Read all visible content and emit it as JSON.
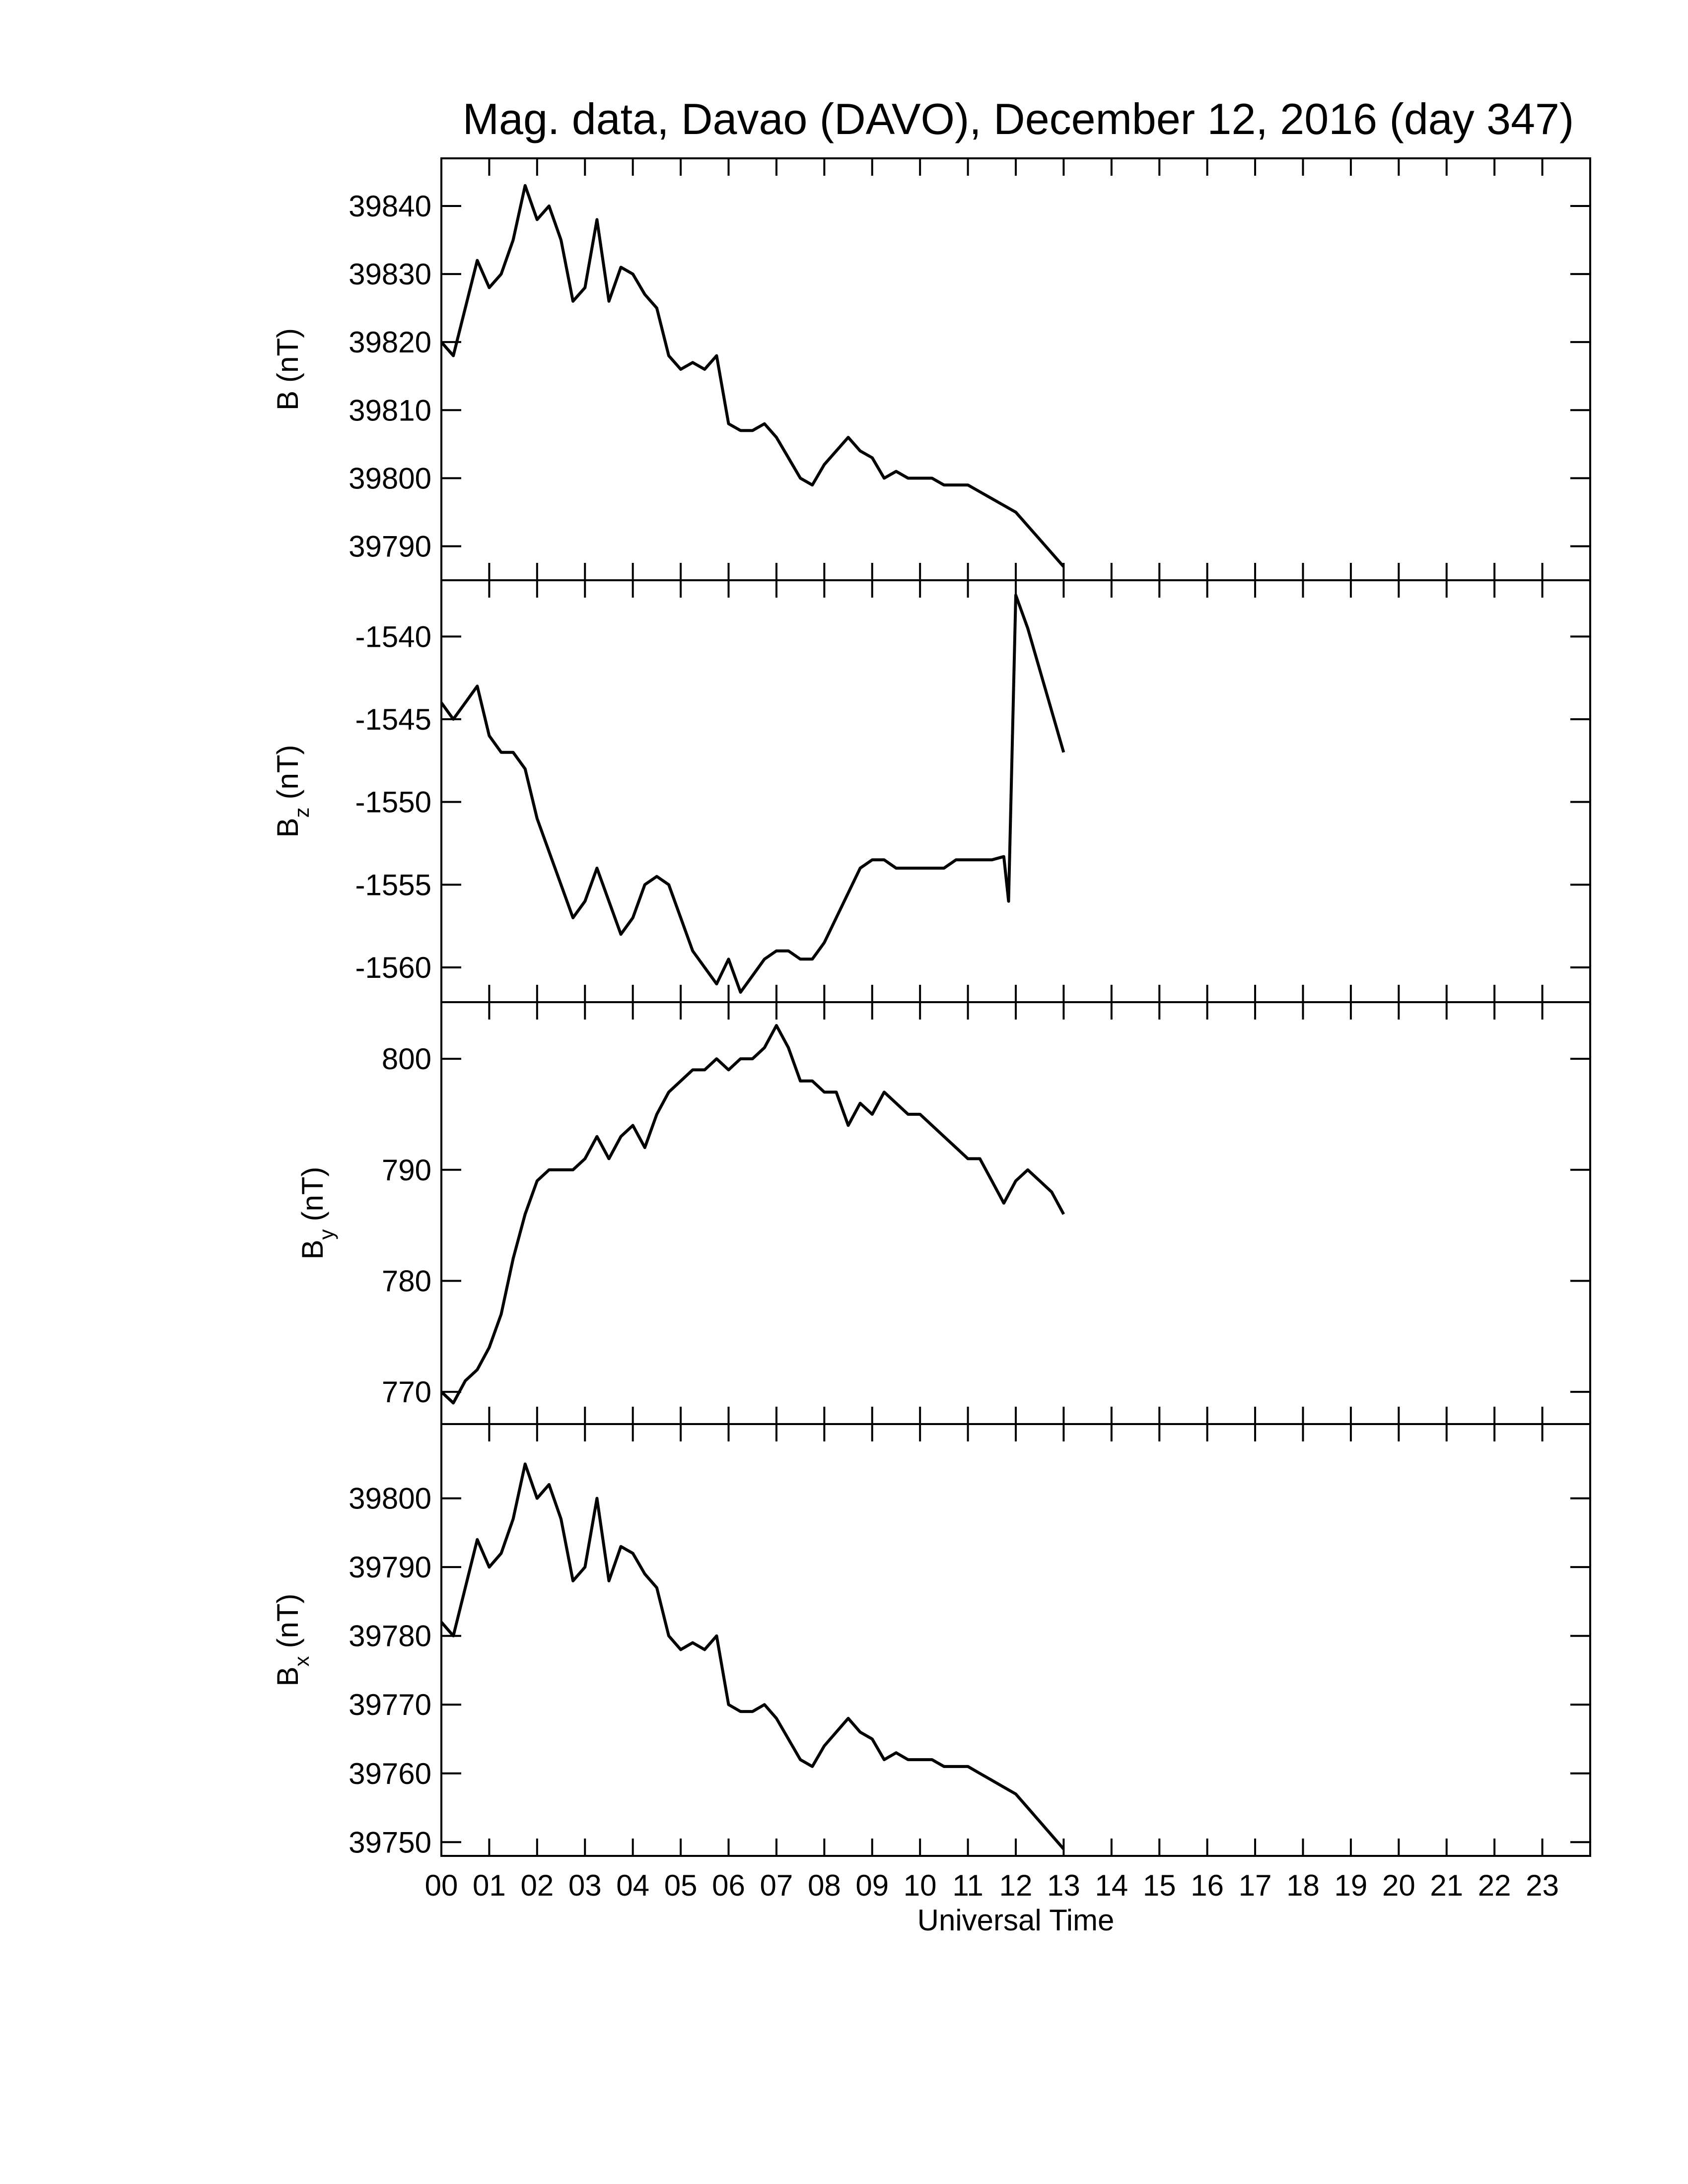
{
  "chart_data": [
    {
      "type": "line",
      "title": "Mag. data, Davao (DAVO), December 12, 2016 (day 347)",
      "ylabel": "B",
      "ylabel_unit": "(nT)",
      "color": "#000000",
      "xlim": [
        0,
        24
      ],
      "ylim": [
        39785,
        39847
      ],
      "yticks": [
        39790,
        39800,
        39810,
        39820,
        39830,
        39840
      ],
      "x": [
        0,
        0.25,
        0.5,
        0.75,
        1,
        1.25,
        1.5,
        1.75,
        2,
        2.25,
        2.5,
        2.75,
        3,
        3.25,
        3.5,
        3.75,
        4,
        4.25,
        4.5,
        4.75,
        5,
        5.25,
        5.5,
        5.75,
        6,
        6.25,
        6.5,
        6.75,
        7,
        7.25,
        7.5,
        7.75,
        8,
        8.25,
        8.5,
        8.75,
        9,
        9.25,
        9.5,
        9.75,
        10,
        10.25,
        10.5,
        10.75,
        11,
        11.25,
        11.5,
        11.75,
        12,
        12.25,
        12.5,
        12.75,
        13
      ],
      "values": [
        39820,
        39818,
        39825,
        39832,
        39828,
        39830,
        39835,
        39843,
        39838,
        39840,
        39835,
        39826,
        39828,
        39838,
        39826,
        39831,
        39830,
        39827,
        39825,
        39818,
        39816,
        39817,
        39816,
        39818,
        39808,
        39807,
        39807,
        39808,
        39806,
        39803,
        39800,
        39799,
        39802,
        39804,
        39806,
        39804,
        39803,
        39800,
        39801,
        39800,
        39800,
        39800,
        39799,
        39799,
        39799,
        39798,
        39797,
        39796,
        39795,
        39793,
        39791,
        39789,
        39787
      ]
    },
    {
      "type": "line",
      "ylabel": "B",
      "ylabel_sub": "z",
      "ylabel_unit": "(nT)",
      "color": "#000000",
      "xlim": [
        0,
        24
      ],
      "ylim": [
        -1562.1,
        -1536.6
      ],
      "yticks": [
        -1560,
        -1555,
        -1550,
        -1545,
        -1540
      ],
      "x": [
        0,
        0.25,
        0.5,
        0.75,
        1,
        1.25,
        1.5,
        1.75,
        2,
        2.25,
        2.5,
        2.75,
        3,
        3.25,
        3.5,
        3.75,
        4,
        4.25,
        4.5,
        4.75,
        5,
        5.25,
        5.5,
        5.75,
        6,
        6.25,
        6.5,
        6.75,
        7,
        7.25,
        7.5,
        7.75,
        8,
        8.25,
        8.5,
        8.75,
        9,
        9.25,
        9.5,
        9.75,
        10,
        10.25,
        10.5,
        10.75,
        11,
        11.25,
        11.5,
        11.75,
        11.85,
        12,
        12.25,
        12.5,
        12.75,
        13
      ],
      "values": [
        -1544,
        -1545,
        -1544,
        -1543,
        -1546,
        -1547,
        -1547,
        -1548,
        -1551,
        -1553,
        -1555,
        -1557,
        -1556,
        -1554,
        -1556,
        -1558,
        -1557,
        -1555,
        -1554.5,
        -1555,
        -1557,
        -1559,
        -1560,
        -1561,
        -1559.5,
        -1561.5,
        -1560.5,
        -1559.5,
        -1559,
        -1559,
        -1559.5,
        -1559.5,
        -1558.5,
        -1557,
        -1555.5,
        -1554,
        -1553.5,
        -1553.5,
        -1554,
        -1554,
        -1554,
        -1554,
        -1554,
        -1553.5,
        -1553.5,
        -1553.5,
        -1553.5,
        -1553.3,
        -1556,
        -1537.5,
        -1539.5,
        -1542,
        -1544.5,
        -1547
      ]
    },
    {
      "type": "line",
      "ylabel": "B",
      "ylabel_sub": "y",
      "ylabel_unit": "(nT)",
      "color": "#000000",
      "xlim": [
        0,
        24
      ],
      "ylim": [
        767.1,
        805.1
      ],
      "yticks": [
        770,
        780,
        790,
        800
      ],
      "x": [
        0,
        0.25,
        0.5,
        0.75,
        1,
        1.25,
        1.5,
        1.75,
        2,
        2.25,
        2.5,
        2.75,
        3,
        3.25,
        3.5,
        3.75,
        4,
        4.25,
        4.5,
        4.75,
        5,
        5.25,
        5.5,
        5.75,
        6,
        6.25,
        6.5,
        6.75,
        7,
        7.25,
        7.5,
        7.75,
        8,
        8.25,
        8.5,
        8.75,
        9,
        9.25,
        9.5,
        9.75,
        10,
        10.25,
        10.5,
        10.75,
        11,
        11.25,
        11.5,
        11.75,
        12,
        12.25,
        12.5,
        12.75,
        13
      ],
      "values": [
        770,
        769,
        771,
        772,
        774,
        777,
        782,
        786,
        789,
        790,
        790,
        790,
        791,
        793,
        791,
        793,
        794,
        792,
        795,
        797,
        798,
        799,
        799,
        800,
        799,
        800,
        800,
        801,
        803,
        801,
        798,
        798,
        797,
        797,
        794,
        796,
        795,
        797,
        796,
        795,
        795,
        794,
        793,
        792,
        791,
        791,
        789,
        787,
        789,
        790,
        789,
        788,
        786
      ]
    },
    {
      "type": "line",
      "ylabel": "B",
      "ylabel_sub": "x",
      "ylabel_unit": "(nT)",
      "xlabel": "Universal Time",
      "color": "#000000",
      "xlim": [
        0,
        24
      ],
      "ylim": [
        39748,
        39810.8
      ],
      "yticks": [
        39750,
        39760,
        39770,
        39780,
        39790,
        39800
      ],
      "xticks": [
        {
          "value": 0,
          "label": "00"
        },
        {
          "value": 1,
          "label": "01"
        },
        {
          "value": 2,
          "label": "02"
        },
        {
          "value": 3,
          "label": "03"
        },
        {
          "value": 4,
          "label": "04"
        },
        {
          "value": 5,
          "label": "05"
        },
        {
          "value": 6,
          "label": "06"
        },
        {
          "value": 7,
          "label": "07"
        },
        {
          "value": 8,
          "label": "08"
        },
        {
          "value": 9,
          "label": "09"
        },
        {
          "value": 10,
          "label": "10"
        },
        {
          "value": 11,
          "label": "11"
        },
        {
          "value": 12,
          "label": "12"
        },
        {
          "value": 13,
          "label": "13"
        },
        {
          "value": 14,
          "label": "14"
        },
        {
          "value": 15,
          "label": "15"
        },
        {
          "value": 16,
          "label": "16"
        },
        {
          "value": 17,
          "label": "17"
        },
        {
          "value": 18,
          "label": "18"
        },
        {
          "value": 19,
          "label": "19"
        },
        {
          "value": 20,
          "label": "20"
        },
        {
          "value": 21,
          "label": "21"
        },
        {
          "value": 22,
          "label": "22"
        },
        {
          "value": 23,
          "label": "23"
        }
      ],
      "x": [
        0,
        0.25,
        0.5,
        0.75,
        1,
        1.25,
        1.5,
        1.75,
        2,
        2.25,
        2.5,
        2.75,
        3,
        3.25,
        3.5,
        3.75,
        4,
        4.25,
        4.5,
        4.75,
        5,
        5.25,
        5.5,
        5.75,
        6,
        6.25,
        6.5,
        6.75,
        7,
        7.25,
        7.5,
        7.75,
        8,
        8.25,
        8.5,
        8.75,
        9,
        9.25,
        9.5,
        9.75,
        10,
        10.25,
        10.5,
        10.75,
        11,
        11.25,
        11.5,
        11.75,
        12,
        12.25,
        12.5,
        12.75,
        13
      ],
      "values": [
        39782,
        39780,
        39787,
        39794,
        39790,
        39792,
        39797,
        39805,
        39800,
        39802,
        39797,
        39788,
        39790,
        39800,
        39788,
        39793,
        39792,
        39789,
        39787,
        39780,
        39778,
        39779,
        39778,
        39780,
        39770,
        39769,
        39769,
        39770,
        39768,
        39765,
        39762,
        39761,
        39764,
        39766,
        39768,
        39766,
        39765,
        39762,
        39763,
        39762,
        39762,
        39762,
        39761,
        39761,
        39761,
        39760,
        39759,
        39758,
        39757,
        39755,
        39753,
        39751,
        39749
      ]
    }
  ]
}
